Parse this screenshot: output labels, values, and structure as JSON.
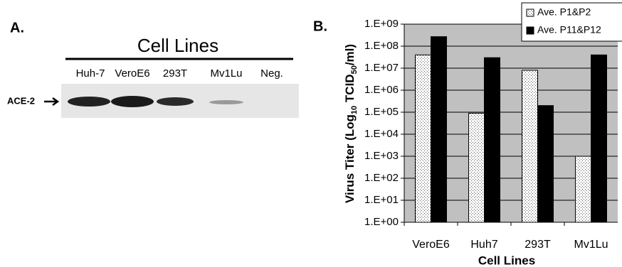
{
  "panel_a": {
    "label": "A.",
    "title": "Cell Lines",
    "lanes": [
      "Huh-7",
      "VeroE6",
      "293T",
      "Mv1Lu",
      "Neg."
    ],
    "band_label": "ACE-2"
  },
  "chart_data": {
    "type": "bar",
    "panel_label": "B.",
    "y_label_parts": [
      "Virus Titer (Log",
      "10",
      " TCID",
      "50",
      "/ml)"
    ],
    "x_label": "Cell Lines",
    "categories": [
      "VeroE6",
      "Huh7",
      "293T",
      "Mv1Lu"
    ],
    "series": [
      {
        "name": "Ave. P1&P2",
        "color": "#ffffff",
        "values": [
          40000000,
          90000,
          8000000,
          1000
        ]
      },
      {
        "name": "Ave. P11&P12",
        "color": "#000000",
        "values": [
          270000000,
          30000000,
          200000,
          40000000
        ]
      }
    ],
    "log_y": true,
    "ylim": [
      1,
      1000000000
    ],
    "yticks": [
      {
        "value": 1,
        "label": "1.E+00"
      },
      {
        "value": 10,
        "label": "1.E+01"
      },
      {
        "value": 100,
        "label": "1.E+02"
      },
      {
        "value": 1000,
        "label": "1.E+03"
      },
      {
        "value": 10000,
        "label": "1.E+04"
      },
      {
        "value": 100000,
        "label": "1.E+05"
      },
      {
        "value": 1000000,
        "label": "1.E+06"
      },
      {
        "value": 10000000,
        "label": "1.E+07"
      },
      {
        "value": 100000000,
        "label": "1.E+08"
      },
      {
        "value": 1000000000,
        "label": "1.E+09"
      }
    ],
    "grid": true,
    "plot_background": "#c0c0c0",
    "legend": "top-right"
  }
}
